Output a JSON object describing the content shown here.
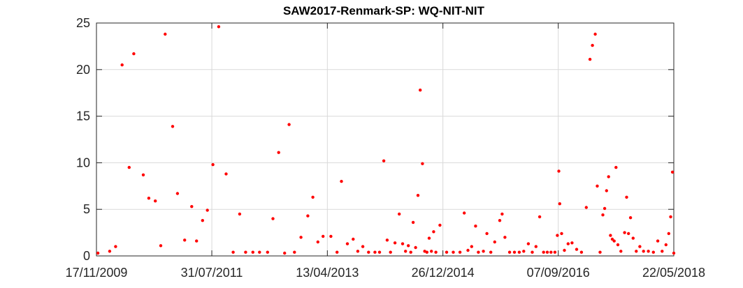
{
  "chart_data": {
    "type": "scatter",
    "title": "SAW2017-Renmark-SP: WQ-NIT-NIT",
    "xlabel": "",
    "ylabel": "",
    "x_axis_type": "date",
    "xlim": [
      "2009-11-17",
      "2018-05-22"
    ],
    "ylim": [
      0,
      25
    ],
    "x_ticks": [
      "17/11/2009",
      "31/07/2011",
      "13/04/2013",
      "26/12/2014",
      "07/09/2016",
      "22/05/2018"
    ],
    "y_ticks": [
      0,
      5,
      10,
      15,
      20,
      25
    ],
    "grid": true,
    "marker_color": "#ff0000",
    "series": [
      {
        "points": [
          [
            "2009-11-25",
            0.3
          ],
          [
            "2010-01-27",
            0.5
          ],
          [
            "2010-02-28",
            1.0
          ],
          [
            "2010-04-04",
            20.5
          ],
          [
            "2010-05-12",
            9.5
          ],
          [
            "2010-06-06",
            21.7
          ],
          [
            "2010-07-27",
            8.7
          ],
          [
            "2010-08-26",
            6.2
          ],
          [
            "2010-09-30",
            5.9
          ],
          [
            "2010-10-29",
            1.1
          ],
          [
            "2010-11-22",
            23.8
          ],
          [
            "2011-01-01",
            13.9
          ],
          [
            "2011-01-27",
            6.7
          ],
          [
            "2011-03-07",
            1.7
          ],
          [
            "2011-04-14",
            5.3
          ],
          [
            "2011-05-10",
            1.6
          ],
          [
            "2011-06-11",
            3.8
          ],
          [
            "2011-07-07",
            4.9
          ],
          [
            "2011-08-06",
            9.8
          ],
          [
            "2011-09-06",
            24.6
          ],
          [
            "2011-10-16",
            8.8
          ],
          [
            "2011-11-23",
            0.4
          ],
          [
            "2011-12-28",
            4.5
          ],
          [
            "2012-01-29",
            0.4
          ],
          [
            "2012-03-08",
            0.4
          ],
          [
            "2012-04-13",
            0.4
          ],
          [
            "2012-05-26",
            0.4
          ],
          [
            "2012-06-24",
            4.0
          ],
          [
            "2012-07-25",
            11.1
          ],
          [
            "2012-08-26",
            0.3
          ],
          [
            "2012-09-19",
            14.1
          ],
          [
            "2012-10-18",
            0.4
          ],
          [
            "2012-11-22",
            2.0
          ],
          [
            "2012-12-29",
            4.3
          ],
          [
            "2013-01-25",
            6.3
          ],
          [
            "2013-02-21",
            1.5
          ],
          [
            "2013-03-21",
            2.1
          ],
          [
            "2013-05-02",
            2.1
          ],
          [
            "2013-06-04",
            0.4
          ],
          [
            "2013-06-28",
            8.0
          ],
          [
            "2013-07-30",
            1.3
          ],
          [
            "2013-08-30",
            1.8
          ],
          [
            "2013-09-24",
            0.5
          ],
          [
            "2013-10-21",
            1.0
          ],
          [
            "2013-11-21",
            0.4
          ],
          [
            "2013-12-25",
            0.4
          ],
          [
            "2014-01-19",
            0.4
          ],
          [
            "2014-02-11",
            10.2
          ],
          [
            "2014-03-01",
            1.7
          ],
          [
            "2014-03-19",
            0.4
          ],
          [
            "2014-04-12",
            1.4
          ],
          [
            "2014-05-05",
            4.5
          ],
          [
            "2014-05-23",
            1.3
          ],
          [
            "2014-06-08",
            0.5
          ],
          [
            "2014-06-23",
            1.1
          ],
          [
            "2014-07-06",
            0.4
          ],
          [
            "2014-07-19",
            3.6
          ],
          [
            "2014-08-01",
            0.9
          ],
          [
            "2014-08-14",
            6.5
          ],
          [
            "2014-08-26",
            17.8
          ],
          [
            "2014-09-07",
            9.9
          ],
          [
            "2014-09-19",
            0.5
          ],
          [
            "2014-10-01",
            0.4
          ],
          [
            "2014-10-13",
            1.9
          ],
          [
            "2014-10-25",
            0.5
          ],
          [
            "2014-11-06",
            2.6
          ],
          [
            "2014-11-18",
            0.4
          ],
          [
            "2014-12-10",
            3.3
          ],
          [
            "2015-01-15",
            0.4
          ],
          [
            "2015-02-20",
            0.4
          ],
          [
            "2015-03-28",
            0.4
          ],
          [
            "2015-04-20",
            4.6
          ],
          [
            "2015-05-10",
            0.6
          ],
          [
            "2015-05-30",
            1.0
          ],
          [
            "2015-06-20",
            3.2
          ],
          [
            "2015-07-05",
            0.4
          ],
          [
            "2015-08-01",
            0.5
          ],
          [
            "2015-08-20",
            2.4
          ],
          [
            "2015-09-10",
            0.4
          ],
          [
            "2015-10-01",
            1.5
          ],
          [
            "2015-10-28",
            3.8
          ],
          [
            "2015-11-10",
            4.5
          ],
          [
            "2015-11-25",
            2.0
          ],
          [
            "2015-12-20",
            0.4
          ],
          [
            "2016-01-15",
            0.4
          ],
          [
            "2016-02-10",
            0.4
          ],
          [
            "2016-03-05",
            0.5
          ],
          [
            "2016-03-30",
            1.3
          ],
          [
            "2016-04-20",
            0.4
          ],
          [
            "2016-05-10",
            1.0
          ],
          [
            "2016-05-30",
            4.2
          ],
          [
            "2016-06-20",
            0.4
          ],
          [
            "2016-07-10",
            0.4
          ],
          [
            "2016-07-30",
            0.4
          ],
          [
            "2016-08-20",
            0.4
          ],
          [
            "2016-09-02",
            2.2
          ],
          [
            "2016-09-10",
            9.1
          ],
          [
            "2016-09-15",
            5.6
          ],
          [
            "2016-09-25",
            2.4
          ],
          [
            "2016-10-10",
            0.6
          ],
          [
            "2016-10-30",
            1.3
          ],
          [
            "2016-11-20",
            1.4
          ],
          [
            "2016-12-15",
            0.7
          ],
          [
            "2017-01-10",
            0.4
          ],
          [
            "2017-02-05",
            5.2
          ],
          [
            "2017-02-25",
            21.1
          ],
          [
            "2017-03-10",
            22.6
          ],
          [
            "2017-03-25",
            23.8
          ],
          [
            "2017-04-05",
            7.5
          ],
          [
            "2017-04-20",
            0.4
          ],
          [
            "2017-05-05",
            4.4
          ],
          [
            "2017-05-15",
            5.1
          ],
          [
            "2017-05-25",
            7.0
          ],
          [
            "2017-06-05",
            8.5
          ],
          [
            "2017-06-15",
            2.2
          ],
          [
            "2017-06-25",
            1.8
          ],
          [
            "2017-07-05",
            1.6
          ],
          [
            "2017-07-15",
            9.5
          ],
          [
            "2017-07-25",
            1.2
          ],
          [
            "2017-08-10",
            0.5
          ],
          [
            "2017-08-30",
            2.5
          ],
          [
            "2017-09-10",
            6.3
          ],
          [
            "2017-09-20",
            2.4
          ],
          [
            "2017-10-01",
            4.1
          ],
          [
            "2017-10-15",
            1.9
          ],
          [
            "2017-11-01",
            0.5
          ],
          [
            "2017-11-20",
            1.0
          ],
          [
            "2017-12-10",
            0.5
          ],
          [
            "2018-01-05",
            0.5
          ],
          [
            "2018-02-01",
            0.4
          ],
          [
            "2018-02-25",
            1.6
          ],
          [
            "2018-03-20",
            0.5
          ],
          [
            "2018-04-10",
            1.2
          ],
          [
            "2018-04-25",
            2.4
          ],
          [
            "2018-05-05",
            4.2
          ],
          [
            "2018-05-15",
            9.0
          ],
          [
            "2018-05-22",
            0.3
          ]
        ]
      }
    ]
  }
}
